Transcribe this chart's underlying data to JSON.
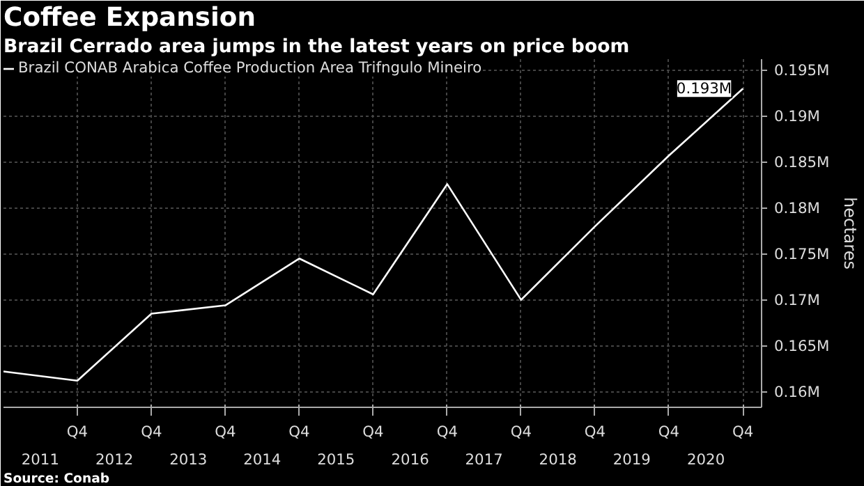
{
  "chart_data": {
    "type": "line",
    "title": "Coffee Expansion",
    "subtitle": "Brazil Cerrado area jumps in the latest years on price boom",
    "ylabel": "hectares",
    "x": [
      "2010-10",
      "2011-10",
      "2012-10",
      "2013-10",
      "2014-10",
      "2015-10",
      "2016-10",
      "2017-10",
      "2018-10",
      "2019-10",
      "2020-10"
    ],
    "series": [
      {
        "name": "Brazil CONAB Arabica Coffee Production Area Trifngulo Mineiro",
        "color": "#ffffff",
        "values": [
          0.1622,
          0.1612,
          0.1685,
          0.1694,
          0.1745,
          0.1706,
          0.1826,
          0.17,
          0.178,
          0.1857,
          0.193
        ],
        "value_labels": [
          null,
          null,
          null,
          null,
          null,
          null,
          null,
          null,
          null,
          null,
          "0.193M"
        ]
      }
    ],
    "xlim": [
      "2010-10",
      "2021-01"
    ],
    "xticks": [
      {
        "value": "2011-04",
        "label": "2011"
      },
      {
        "value": "2012-04",
        "label": "2012"
      },
      {
        "value": "2013-04",
        "label": "2013"
      },
      {
        "value": "2014-04",
        "label": "2014"
      },
      {
        "value": "2015-04",
        "label": "2015"
      },
      {
        "value": "2016-04",
        "label": "2016"
      },
      {
        "value": "2017-04",
        "label": "2017"
      },
      {
        "value": "2018-04",
        "label": "2018"
      },
      {
        "value": "2019-04",
        "label": "2019"
      },
      {
        "value": "2020-04",
        "label": "2020"
      }
    ],
    "x2lim": [
      "2010-10",
      "2021-01"
    ],
    "x2ticks": [
      {
        "value": "2011-10",
        "label": "Q4"
      },
      {
        "value": "2012-10",
        "label": "Q4"
      },
      {
        "value": "2013-10",
        "label": "Q4"
      },
      {
        "value": "2014-10",
        "label": "Q4"
      },
      {
        "value": "2015-10",
        "label": "Q4"
      },
      {
        "value": "2016-10",
        "label": "Q4"
      },
      {
        "value": "2017-10",
        "label": "Q4"
      },
      {
        "value": "2018-10",
        "label": "Q4"
      },
      {
        "value": "2019-10",
        "label": "Q4"
      },
      {
        "value": "2020-10",
        "label": "Q4"
      }
    ],
    "ylim": [
      0.1583,
      0.1962
    ],
    "yticks": [
      {
        "value": 0.16,
        "label": "0.16M"
      },
      {
        "value": 0.165,
        "label": "0.165M"
      },
      {
        "value": 0.17,
        "label": "0.17M"
      },
      {
        "value": 0.175,
        "label": "0.175M"
      },
      {
        "value": 0.18,
        "label": "0.18M"
      },
      {
        "value": 0.185,
        "label": "0.185M"
      },
      {
        "value": 0.19,
        "label": "0.19M"
      },
      {
        "value": 0.195,
        "label": "0.195M"
      }
    ],
    "grid": true,
    "legend": "top left",
    "line_style": "solid",
    "annotations": [
      "Source: Conab"
    ]
  }
}
